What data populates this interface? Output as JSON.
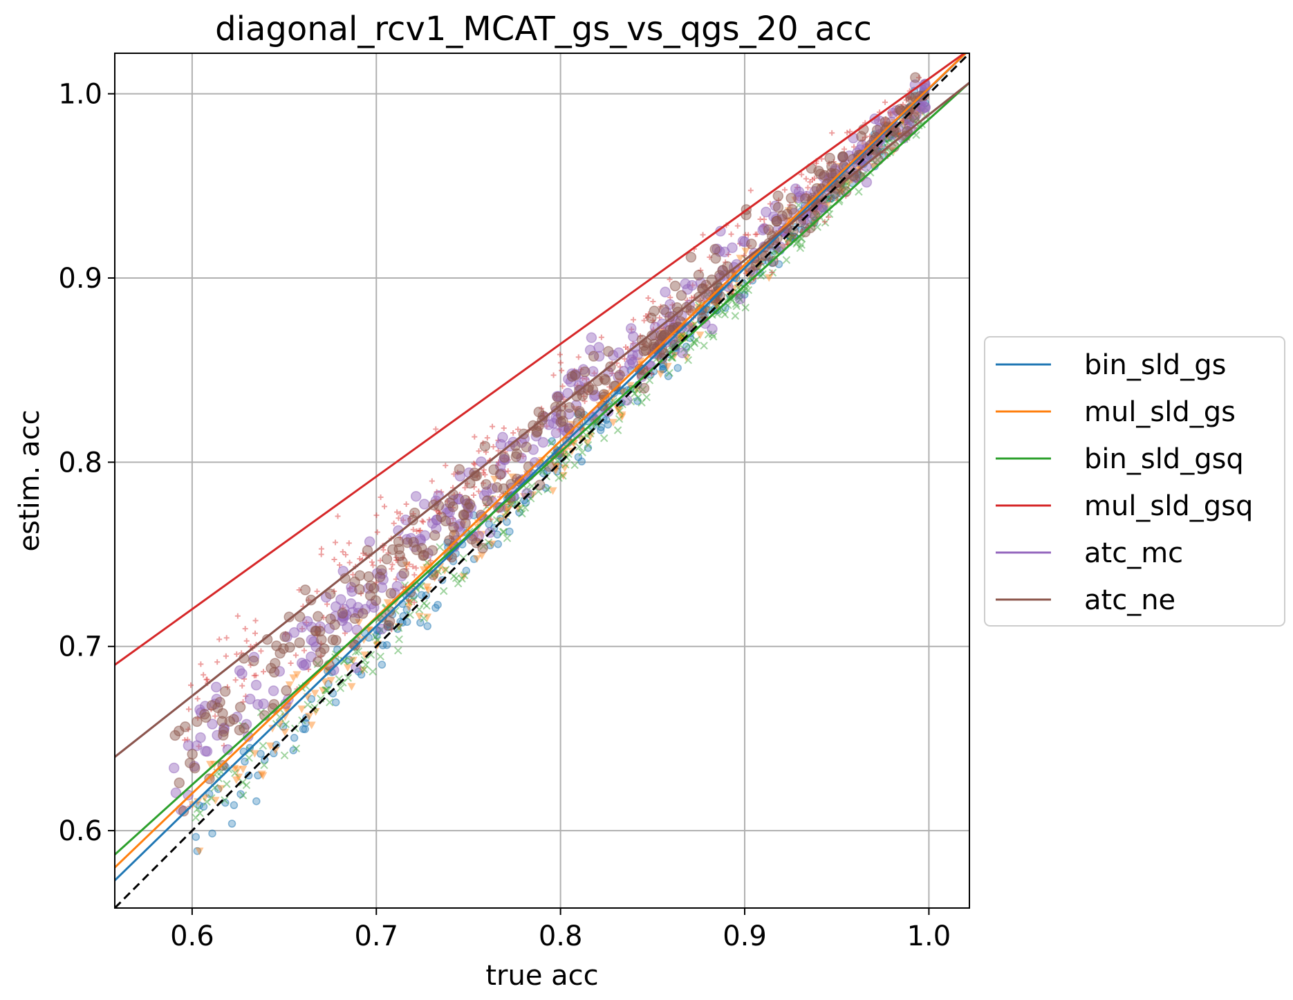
{
  "chart_data": {
    "type": "scatter",
    "title": "diagonal_rcv1_MCAT_gs_vs_qgs_20_acc",
    "xlabel": "true acc",
    "ylabel": "estim. acc",
    "xlim": [
      0.558,
      1.022
    ],
    "ylim": [
      0.558,
      1.022
    ],
    "xticks": [
      "0.6",
      "0.7",
      "0.8",
      "0.9",
      "1.0"
    ],
    "yticks": [
      "0.6",
      "0.7",
      "0.8",
      "0.9",
      "1.0"
    ],
    "grid": true,
    "legend_position": "center-right",
    "diagonal": {
      "style": "dashed",
      "color": "#000000",
      "from": [
        0.558,
        0.558
      ],
      "to": [
        1.022,
        1.022
      ]
    },
    "series": [
      {
        "name": "bin_sld_gs",
        "color": "#1f77b4",
        "marker": "circle",
        "fit_line": {
          "x": [
            0.558,
            1.022
          ],
          "y": [
            0.573,
            1.024
          ]
        },
        "scatter": {
          "x_range": [
            0.6,
            1.0
          ],
          "offset": 0.002,
          "noise": 0.008,
          "count": 260
        }
      },
      {
        "name": "mul_sld_gs",
        "color": "#ff7f0e",
        "marker": "triangle-down",
        "fit_line": {
          "x": [
            0.558,
            1.022
          ],
          "y": [
            0.58,
            1.024
          ]
        },
        "scatter": {
          "x_range": [
            0.6,
            1.0
          ],
          "offset": 0.008,
          "noise": 0.009,
          "count": 280
        }
      },
      {
        "name": "bin_sld_gsq",
        "color": "#2ca02c",
        "marker": "x",
        "fit_line": {
          "x": [
            0.558,
            1.022
          ],
          "y": [
            0.587,
            1.006
          ]
        },
        "scatter": {
          "x_range": [
            0.6,
            1.0
          ],
          "offset": 0.006,
          "noise": 0.009,
          "count": 320
        }
      },
      {
        "name": "mul_sld_gsq",
        "color": "#d62728",
        "marker": "plus",
        "fit_line": {
          "x": [
            0.558,
            1.022
          ],
          "y": [
            0.69,
            1.024
          ]
        },
        "scatter": {
          "x_range": [
            0.59,
            1.0
          ],
          "offset": 0.06,
          "noise": 0.016,
          "count": 420
        }
      },
      {
        "name": "atc_mc",
        "color": "#9467bd",
        "marker": "circle",
        "fit_line": {
          "x": [
            0.558,
            1.022
          ],
          "y": [
            0.64,
            1.006
          ]
        },
        "scatter": {
          "x_range": [
            0.59,
            1.0
          ],
          "offset": 0.045,
          "noise": 0.013,
          "count": 340
        }
      },
      {
        "name": "atc_ne",
        "color": "#8c564b",
        "marker": "circle",
        "fit_line": {
          "x": [
            0.558,
            1.022
          ],
          "y": [
            0.64,
            1.006
          ]
        },
        "scatter": {
          "x_range": [
            0.59,
            1.0
          ],
          "offset": 0.045,
          "noise": 0.013,
          "count": 340
        }
      }
    ]
  }
}
